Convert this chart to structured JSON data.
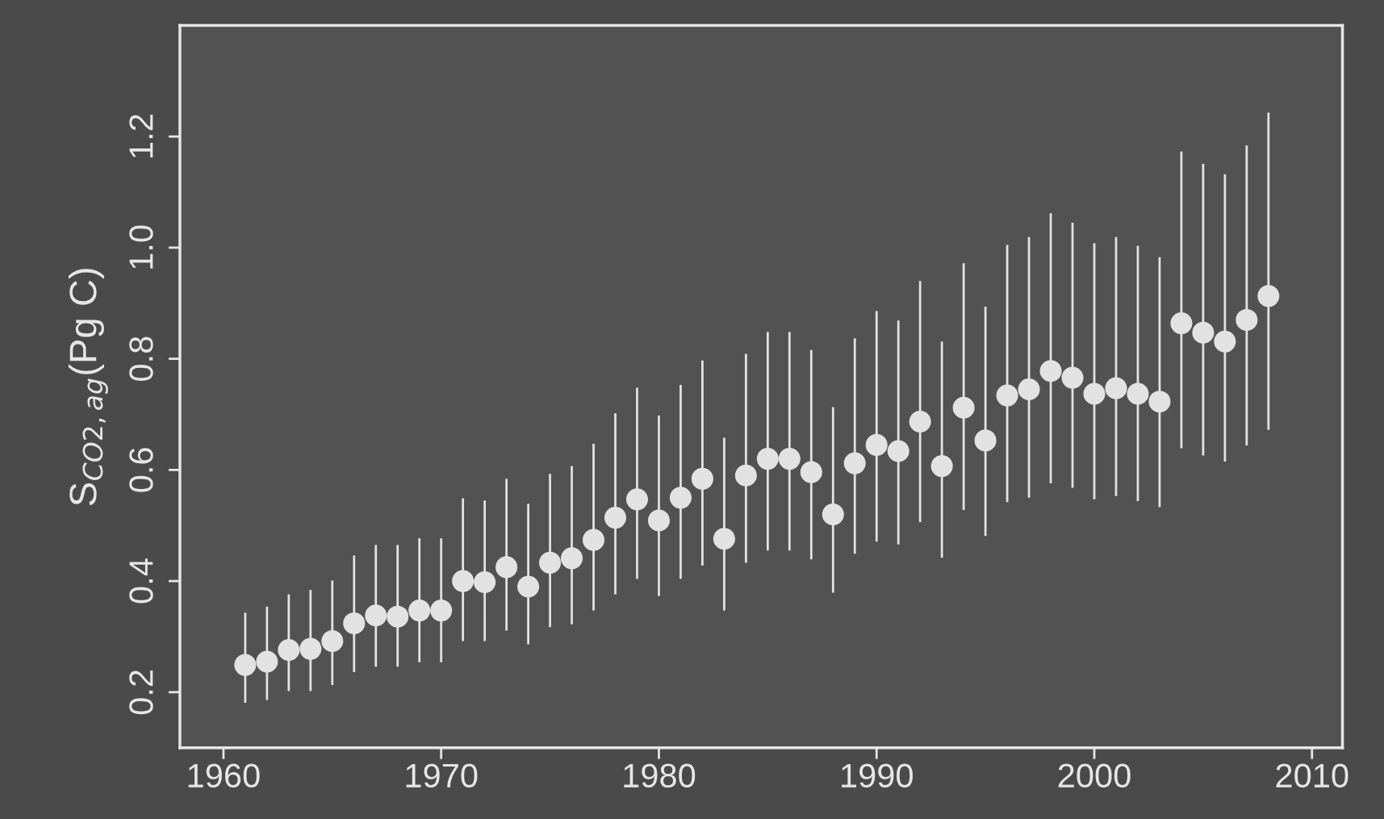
{
  "chart_data": {
    "type": "scatter",
    "ylabel": "S$_{CO2,ag}$(Pg C)",
    "x": [
      1961,
      1962,
      1963,
      1964,
      1965,
      1966,
      1967,
      1968,
      1969,
      1970,
      1971,
      1972,
      1973,
      1974,
      1975,
      1976,
      1977,
      1978,
      1979,
      1980,
      1981,
      1982,
      1983,
      1984,
      1985,
      1986,
      1987,
      1988,
      1989,
      1990,
      1991,
      1992,
      1993,
      1994,
      1995,
      1996,
      1997,
      1998,
      1999,
      2000,
      2001,
      2002,
      2003,
      2004,
      2005,
      2006,
      2007,
      2008
    ],
    "series": [
      {
        "color": "#e2e2e2",
        "values": [
          0.249,
          0.255,
          0.276,
          0.278,
          0.292,
          0.324,
          0.338,
          0.336,
          0.347,
          0.347,
          0.4,
          0.398,
          0.425,
          0.39,
          0.433,
          0.441,
          0.474,
          0.514,
          0.547,
          0.509,
          0.55,
          0.584,
          0.476,
          0.59,
          0.62,
          0.62,
          0.596,
          0.52,
          0.612,
          0.645,
          0.634,
          0.687,
          0.607,
          0.712,
          0.653,
          0.734,
          0.745,
          0.778,
          0.766,
          0.737,
          0.747,
          0.737,
          0.723,
          0.864,
          0.847,
          0.831,
          0.87,
          0.913
        ],
        "errors": [
          [
            0.181,
            0.343
          ],
          [
            0.186,
            0.354
          ],
          [
            0.202,
            0.376
          ],
          [
            0.202,
            0.384
          ],
          [
            0.213,
            0.401
          ],
          [
            0.236,
            0.446
          ],
          [
            0.246,
            0.465
          ],
          [
            0.246,
            0.465
          ],
          [
            0.254,
            0.477
          ],
          [
            0.254,
            0.477
          ],
          [
            0.292,
            0.549
          ],
          [
            0.292,
            0.545
          ],
          [
            0.311,
            0.584
          ],
          [
            0.286,
            0.539
          ],
          [
            0.317,
            0.593
          ],
          [
            0.322,
            0.607
          ],
          [
            0.347,
            0.647
          ],
          [
            0.376,
            0.702
          ],
          [
            0.404,
            0.748
          ],
          [
            0.373,
            0.698
          ],
          [
            0.404,
            0.753
          ],
          [
            0.428,
            0.797
          ],
          [
            0.347,
            0.658
          ],
          [
            0.433,
            0.809
          ],
          [
            0.455,
            0.848
          ],
          [
            0.455,
            0.848
          ],
          [
            0.439,
            0.816
          ],
          [
            0.379,
            0.713
          ],
          [
            0.449,
            0.837
          ],
          [
            0.471,
            0.886
          ],
          [
            0.466,
            0.869
          ],
          [
            0.506,
            0.94
          ],
          [
            0.442,
            0.831
          ],
          [
            0.528,
            0.972
          ],
          [
            0.481,
            0.894
          ],
          [
            0.542,
            1.005
          ],
          [
            0.55,
            1.019
          ],
          [
            0.576,
            1.062
          ],
          [
            0.568,
            1.045
          ],
          [
            0.547,
            1.008
          ],
          [
            0.553,
            1.019
          ],
          [
            0.544,
            1.003
          ],
          [
            0.533,
            0.983
          ],
          [
            0.639,
            1.173
          ],
          [
            0.626,
            1.151
          ],
          [
            0.615,
            1.132
          ],
          [
            0.644,
            1.184
          ],
          [
            0.672,
            1.243
          ]
        ]
      }
    ],
    "xlim": [
      1958,
      2011.4
    ],
    "ylim": [
      0.1,
      1.4
    ],
    "xticks": [
      1960,
      1970,
      1980,
      1990,
      2000,
      2010
    ],
    "yticks": [
      {
        "value": 0.2,
        "label": "0.2"
      },
      {
        "value": 0.4,
        "label": "0.4"
      },
      {
        "value": 0.6,
        "label": "0.6"
      },
      {
        "value": 0.8,
        "label": "0.8"
      },
      {
        "value": 1.0,
        "label": "1.0"
      },
      {
        "value": 1.2,
        "label": "1.2"
      }
    ],
    "marker": "circle",
    "grid": false,
    "legend": false
  }
}
